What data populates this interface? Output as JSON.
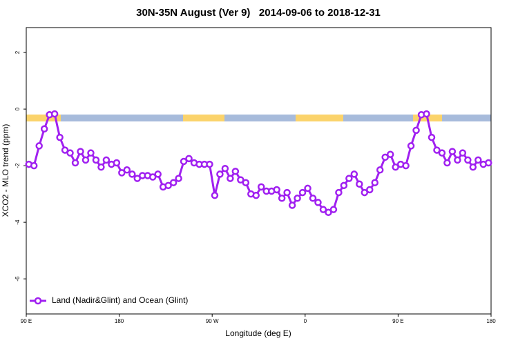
{
  "chart_data": {
    "type": "line",
    "title": "30N-35N August (Ver 9)   2014-09-06 to 2018-12-31",
    "x_label": "Longitude (deg E)",
    "y_label": "XCO2 - MLO trend (ppm)",
    "x": [
      92.5,
      97.5,
      102.5,
      107.5,
      112.5,
      117.5,
      122.5,
      127.5,
      132.5,
      137.5,
      142.5,
      147.5,
      152.5,
      157.5,
      162.5,
      167.5,
      172.5,
      177.5,
      182.5,
      187.5,
      192.5,
      197.5,
      202.5,
      207.5,
      212.5,
      217.5,
      222.5,
      227.5,
      232.5,
      237.5,
      242.5,
      247.5,
      252.5,
      257.5,
      262.5,
      267.5,
      272.5,
      277.5,
      282.5,
      287.5,
      292.5,
      297.5,
      302.5,
      307.5,
      312.5,
      317.5,
      322.5,
      327.5,
      332.5,
      337.5,
      342.5,
      347.5,
      352.5,
      357.5,
      362.5,
      367.5,
      372.5,
      377.5,
      382.5,
      387.5,
      392.5,
      397.5,
      402.5,
      407.5,
      412.5,
      417.5,
      422.5,
      427.5,
      432.5,
      437.5,
      442.5,
      447.5,
      452.5,
      457.5,
      462.5,
      467.5,
      472.5,
      477.5,
      482.5,
      487.5,
      492.5,
      497.5,
      502.5,
      507.5,
      512.5,
      517.5,
      522.5,
      527.5,
      532.5,
      537.5
    ],
    "series": [
      {
        "name": "Land (Nadir&Glint) and Ocean (Glint)",
        "color": "#a020f0",
        "values": [
          -1.95,
          -2.0,
          -1.3,
          -0.7,
          -0.2,
          -0.17,
          -1.0,
          -1.45,
          -1.55,
          -1.9,
          -1.5,
          -1.8,
          -1.55,
          -1.8,
          -2.05,
          -1.8,
          -1.95,
          -1.9,
          -2.25,
          -2.15,
          -2.3,
          -2.45,
          -2.35,
          -2.35,
          -2.4,
          -2.3,
          -2.75,
          -2.7,
          -2.6,
          -2.45,
          -1.85,
          -1.75,
          -1.9,
          -1.95,
          -1.95,
          -1.95,
          -3.05,
          -2.3,
          -2.1,
          -2.45,
          -2.2,
          -2.5,
          -2.6,
          -3.0,
          -3.05,
          -2.75,
          -2.9,
          -2.9,
          -2.85,
          -3.15,
          -2.95,
          -3.4,
          -3.15,
          -2.95,
          -2.8,
          -3.15,
          -3.3,
          -3.55,
          -3.65,
          -3.55,
          -2.95,
          -2.7,
          -2.45,
          -2.3,
          -2.65,
          -2.95,
          -2.85,
          -2.6,
          -2.15,
          -1.7,
          -1.6,
          -2.05,
          -1.95,
          -2.0,
          -1.3,
          -0.75,
          -0.2,
          -0.17,
          -1.0,
          -1.45,
          -1.55,
          -1.9,
          -1.5,
          -1.8,
          -1.55,
          -1.8,
          -2.05,
          -1.8,
          -1.95,
          -1.9
        ]
      }
    ],
    "xlim": [
      90,
      540
    ],
    "xticks": [
      {
        "value": 90,
        "label": "90 E"
      },
      180,
      {
        "value": 270,
        "label": "90 W"
      },
      {
        "value": 360,
        "label": "0"
      },
      {
        "value": 450,
        "label": "90 E"
      },
      {
        "value": 540,
        "label": "180"
      }
    ],
    "ylim": [
      -7.24,
      2.88
    ],
    "yticks": [
      2,
      0,
      -2,
      -4,
      -6
    ],
    "legend": "lower left"
  }
}
